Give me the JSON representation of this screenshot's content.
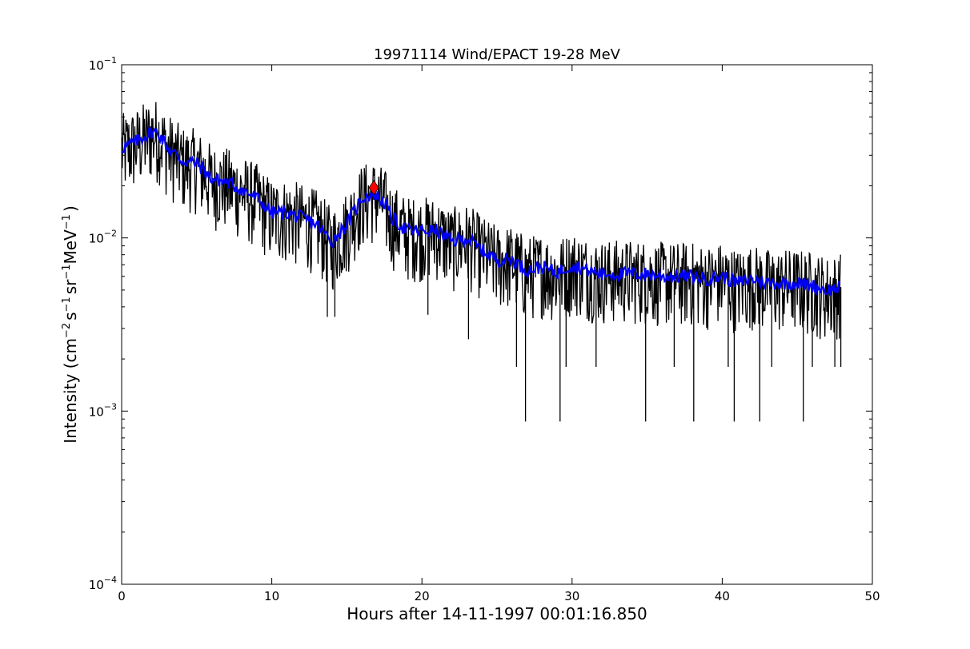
{
  "chart_data": {
    "type": "line",
    "title": "19971114 Wind/EPACT 19-28 MeV",
    "xlabel": "Hours after 14-11-1997 00:01:16.850",
    "ylabel": {
      "prefix": "Intensity (cm",
      "exp1": "−2",
      "mid1": "s",
      "exp2": "−1",
      "mid2": "sr",
      "exp3": "−1",
      "mid3": "MeV",
      "exp4": "−1",
      "suffix": ")"
    },
    "xlim": [
      0,
      50
    ],
    "ylim": [
      0.0001,
      0.1
    ],
    "yscale": "log",
    "grid": false,
    "x_ticks": [
      {
        "value": 0,
        "label": "0"
      },
      {
        "value": 10,
        "label": "10"
      },
      {
        "value": 20,
        "label": "20"
      },
      {
        "value": 30,
        "label": "30"
      },
      {
        "value": 40,
        "label": "40"
      },
      {
        "value": 50,
        "label": "50"
      }
    ],
    "y_ticks": [
      {
        "value": 0.0001,
        "base": "10",
        "exp": "−4"
      },
      {
        "value": 0.001,
        "base": "10",
        "exp": "−3"
      },
      {
        "value": 0.01,
        "base": "10",
        "exp": "−2"
      },
      {
        "value": 0.1,
        "base": "10",
        "exp": "−1"
      }
    ],
    "series": [
      {
        "color": "#000000",
        "style": "noisy-raw",
        "x": [
          0,
          1,
          2,
          2.5,
          3,
          4,
          5,
          6,
          7,
          8,
          9,
          10,
          11,
          12,
          13,
          14,
          15,
          16,
          16.8,
          17.5,
          18,
          19,
          20,
          21,
          22,
          23,
          24,
          25,
          26,
          27,
          28,
          29,
          30,
          31,
          32,
          33,
          34,
          35,
          36,
          37,
          38,
          39,
          40,
          41,
          42,
          43,
          44,
          45,
          46,
          47,
          47.9
        ],
        "values": [
          0.033,
          0.036,
          0.041,
          0.04,
          0.034,
          0.028,
          0.027,
          0.022,
          0.021,
          0.019,
          0.017,
          0.014,
          0.014,
          0.013,
          0.012,
          0.0095,
          0.012,
          0.017,
          0.018,
          0.016,
          0.013,
          0.011,
          0.011,
          0.011,
          0.0095,
          0.01,
          0.0085,
          0.0075,
          0.0075,
          0.0065,
          0.0068,
          0.0063,
          0.007,
          0.0065,
          0.0062,
          0.0062,
          0.0062,
          0.0062,
          0.006,
          0.006,
          0.006,
          0.0058,
          0.006,
          0.0055,
          0.0058,
          0.0055,
          0.0055,
          0.0055,
          0.0053,
          0.005,
          0.0052
        ],
        "noise_dex_up": 0.2,
        "noise_dex_down": 0.3
      },
      {
        "color": "#0000ff",
        "style": "smoothed",
        "x": [
          0,
          1,
          2,
          2.5,
          3,
          4,
          5,
          6,
          7,
          8,
          9,
          10,
          11,
          12,
          13,
          14,
          15,
          16,
          16.8,
          17.5,
          18,
          19,
          20,
          21,
          22,
          23,
          24,
          25,
          26,
          27,
          28,
          29,
          30,
          31,
          32,
          33,
          34,
          35,
          36,
          37,
          38,
          39,
          40,
          41,
          42,
          43,
          44,
          45,
          46,
          47,
          47.9
        ],
        "values": [
          0.033,
          0.036,
          0.041,
          0.04,
          0.034,
          0.028,
          0.027,
          0.022,
          0.021,
          0.019,
          0.017,
          0.014,
          0.014,
          0.013,
          0.012,
          0.0095,
          0.012,
          0.017,
          0.018,
          0.016,
          0.013,
          0.011,
          0.011,
          0.011,
          0.0095,
          0.01,
          0.0085,
          0.0075,
          0.0075,
          0.0065,
          0.0068,
          0.0063,
          0.007,
          0.0065,
          0.0062,
          0.0062,
          0.0062,
          0.0062,
          0.006,
          0.006,
          0.006,
          0.0058,
          0.006,
          0.0055,
          0.0058,
          0.0055,
          0.0055,
          0.0055,
          0.0053,
          0.005,
          0.0052
        ]
      }
    ],
    "drops": [
      {
        "x": 13.7,
        "y": 0.0035
      },
      {
        "x": 14.2,
        "y": 0.0035
      },
      {
        "x": 20.4,
        "y": 0.0036
      },
      {
        "x": 23.1,
        "y": 0.0026
      },
      {
        "x": 26.3,
        "y": 0.0018
      },
      {
        "x": 26.9,
        "y": 0.00087
      },
      {
        "x": 29.2,
        "y": 0.00087
      },
      {
        "x": 29.6,
        "y": 0.0018
      },
      {
        "x": 31.6,
        "y": 0.0018
      },
      {
        "x": 34.9,
        "y": 0.00087
      },
      {
        "x": 36.8,
        "y": 0.0018
      },
      {
        "x": 38.1,
        "y": 0.00087
      },
      {
        "x": 40.4,
        "y": 0.0018
      },
      {
        "x": 40.8,
        "y": 0.00087
      },
      {
        "x": 42.5,
        "y": 0.00087
      },
      {
        "x": 43.3,
        "y": 0.0018
      },
      {
        "x": 45.4,
        "y": 0.00087
      },
      {
        "x": 46.0,
        "y": 0.0018
      },
      {
        "x": 47.5,
        "y": 0.0018
      },
      {
        "x": 47.9,
        "y": 0.0018
      }
    ],
    "marker": {
      "x": 16.8,
      "y": 0.0195,
      "shape": "diamond",
      "color": "#ff0000"
    }
  }
}
